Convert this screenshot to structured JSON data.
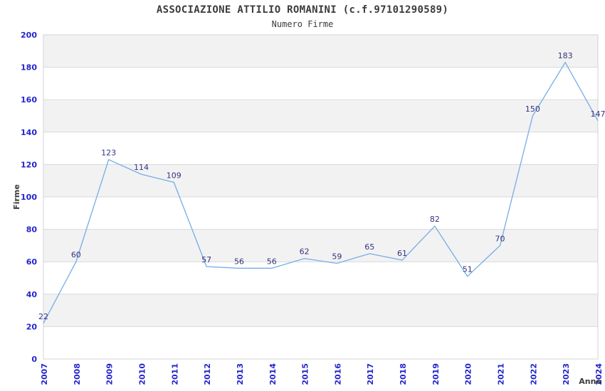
{
  "chart_data": {
    "type": "line",
    "title": "ASSOCIAZIONE ATTILIO ROMANINI (c.f.97101290589)",
    "subtitle": "Numero Firme",
    "xlabel": "Anno",
    "ylabel": "Firme",
    "x": [
      "2007",
      "2008",
      "2009",
      "2010",
      "2011",
      "2012",
      "2013",
      "2014",
      "2015",
      "2016",
      "2017",
      "2018",
      "2019",
      "2020",
      "2021",
      "2022",
      "2023",
      "2024"
    ],
    "series": [
      {
        "name": "Numero Firme",
        "values": [
          22,
          60,
          123,
          114,
          109,
          57,
          56,
          56,
          62,
          59,
          65,
          61,
          82,
          51,
          70,
          150,
          183,
          147
        ]
      }
    ],
    "ylim": [
      0,
      200
    ],
    "ytick_step": 20,
    "grid": true,
    "legend": "none",
    "layout": {
      "banded_background": true,
      "x_labels_rotated_90": true,
      "data_labels_shown": true
    },
    "colors": {
      "line": "#74ade8",
      "tick_label": "#2424cc",
      "data_label": "#333380",
      "band": "#f2f2f2",
      "band_alt": "#ffffff",
      "gridline": "#d9d9d9",
      "plot_border": "#d3d3d3",
      "text": "#3c3c3c",
      "background": "#ffffff"
    }
  }
}
